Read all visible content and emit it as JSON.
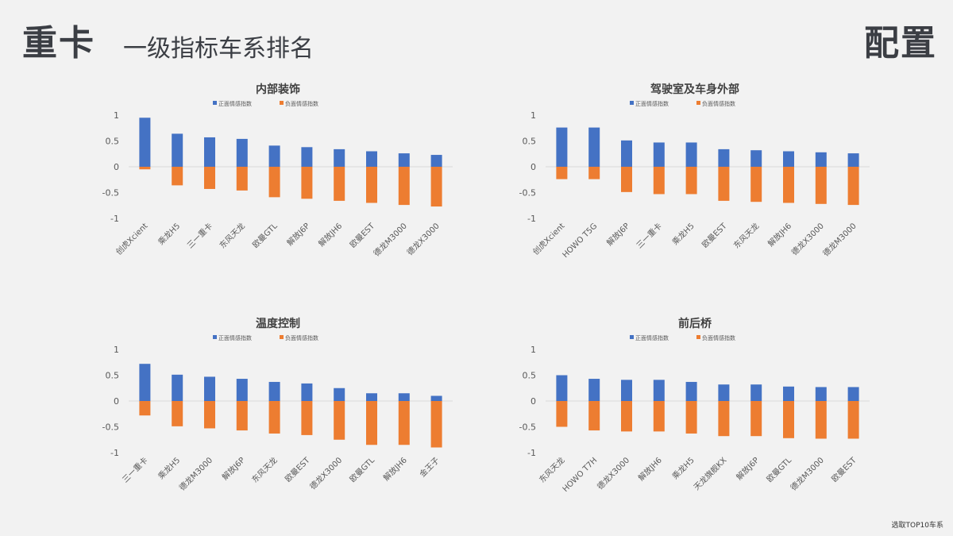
{
  "header": {
    "left_title": "重卡",
    "subtitle": "一级指标车系排名",
    "right_title": "配置"
  },
  "footer": {
    "note": "选取TOP10车系"
  },
  "colors": {
    "positive": "#4472c4",
    "negative": "#ed7d31",
    "zero_line": "#d9d9d9",
    "text": "#595959"
  },
  "chart_data": [
    {
      "type": "bar",
      "title": "内部装饰",
      "categories": [
        "创虎Xcient",
        "乘龙H5",
        "三一重卡",
        "东风天龙",
        "欧曼GTL",
        "解放J6P",
        "解放JH6",
        "欧曼EST",
        "德龙M3000",
        "德龙X3000"
      ],
      "series": [
        {
          "name": "正面情感指数",
          "values": [
            0.95,
            0.64,
            0.57,
            0.54,
            0.41,
            0.38,
            0.34,
            0.3,
            0.26,
            0.23
          ]
        },
        {
          "name": "负面情感指数",
          "values": [
            -0.05,
            -0.36,
            -0.43,
            -0.46,
            -0.59,
            -0.62,
            -0.66,
            -0.7,
            -0.74,
            -0.77
          ]
        }
      ],
      "ylim": [
        -1,
        1
      ],
      "yticks": [
        1,
        0.5,
        0,
        -0.5,
        -1
      ],
      "ytick_labels": [
        "1",
        "0.5",
        "0",
        "-0.5",
        "-1"
      ],
      "legend": "top"
    },
    {
      "type": "bar",
      "title": "驾驶室及车身外部",
      "categories": [
        "创虎Xcient",
        "HOWO T5G",
        "解放J6P",
        "三一重卡",
        "乘龙H5",
        "欧曼EST",
        "东风天龙",
        "解放JH6",
        "德龙X3000",
        "德龙M3000"
      ],
      "series": [
        {
          "name": "正面情感指数",
          "values": [
            0.76,
            0.76,
            0.51,
            0.47,
            0.47,
            0.34,
            0.32,
            0.3,
            0.28,
            0.26
          ]
        },
        {
          "name": "负面情感指数",
          "values": [
            -0.24,
            -0.24,
            -0.49,
            -0.53,
            -0.53,
            -0.66,
            -0.68,
            -0.7,
            -0.72,
            -0.74
          ]
        }
      ],
      "ylim": [
        -1,
        1
      ],
      "yticks": [
        1,
        0.5,
        0,
        -0.5,
        -1
      ],
      "ytick_labels": [
        "1",
        "0.5",
        "0",
        "-0.5",
        "-1"
      ],
      "legend": "top"
    },
    {
      "type": "bar",
      "title": "温度控制",
      "categories": [
        "三一重卡",
        "乘龙H5",
        "德龙M3000",
        "解放J6P",
        "东风天龙",
        "欧曼EST",
        "德龙X3000",
        "欧曼GTL",
        "解放JH6",
        "金王子"
      ],
      "series": [
        {
          "name": "正面情感指数",
          "values": [
            0.72,
            0.51,
            0.47,
            0.43,
            0.37,
            0.34,
            0.25,
            0.15,
            0.15,
            0.1
          ]
        },
        {
          "name": "负面情感指数",
          "values": [
            -0.28,
            -0.49,
            -0.53,
            -0.57,
            -0.63,
            -0.66,
            -0.75,
            -0.85,
            -0.85,
            -0.9
          ]
        }
      ],
      "ylim": [
        -1,
        1
      ],
      "yticks": [
        1,
        0.5,
        0,
        -0.5,
        -1
      ],
      "ytick_labels": [
        "1",
        "0.5",
        "0",
        "-0.5",
        "-1"
      ],
      "legend": "top"
    },
    {
      "type": "bar",
      "title": "前后桥",
      "categories": [
        "东风天龙",
        "HOWO T7H",
        "德龙X3000",
        "解放JH6",
        "乘龙H5",
        "天龙旗舰KX",
        "解放J6P",
        "欧曼GTL",
        "德龙M3000",
        "欧曼EST"
      ],
      "series": [
        {
          "name": "正面情感指数",
          "values": [
            0.5,
            0.43,
            0.41,
            0.41,
            0.37,
            0.32,
            0.32,
            0.28,
            0.27,
            0.27
          ]
        },
        {
          "name": "负面情感指数",
          "values": [
            -0.5,
            -0.57,
            -0.59,
            -0.59,
            -0.63,
            -0.68,
            -0.68,
            -0.72,
            -0.73,
            -0.73
          ]
        }
      ],
      "ylim": [
        -1,
        1
      ],
      "yticks": [
        1,
        0.5,
        0,
        -0.5,
        -1
      ],
      "ytick_labels": [
        "1",
        "0.5",
        "0",
        "-0.5",
        "-1"
      ],
      "legend": "top"
    }
  ]
}
